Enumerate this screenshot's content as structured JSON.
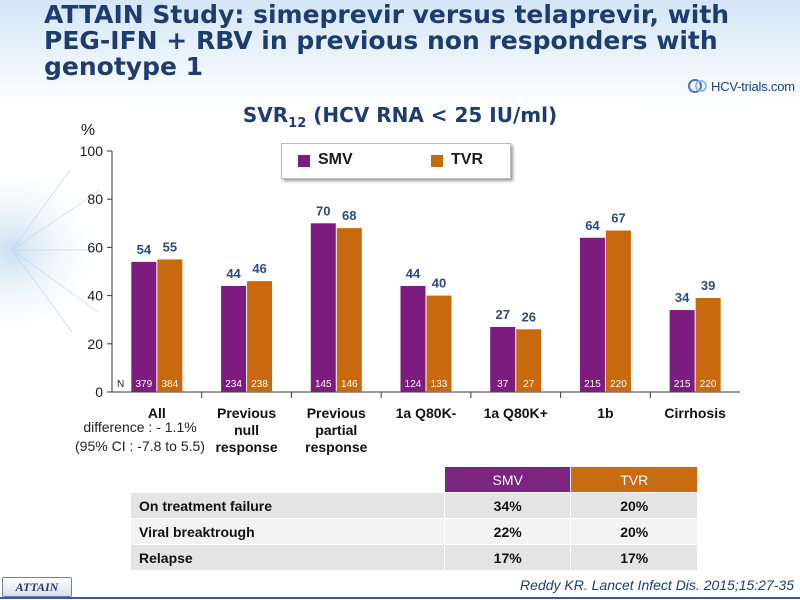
{
  "slide": {
    "title": "ATTAIN Study: simeprevir versus telaprevir, with PEG-IFN + RBV in previous non responders with genotype 1",
    "logo_text": "HCV-trials.com",
    "subtitle_main": "SVR",
    "subtitle_sub": "12",
    "subtitle_rest": " (HCV RNA < 25 IU/ml)",
    "difference_line1": "difference : - 1.1%",
    "difference_line2": "(95% CI : -7.8 to 5.5)",
    "badge": "ATTAIN",
    "citation": "Reddy KR. Lancet Infect Dis. 2015;15:27-35"
  },
  "colors": {
    "smv": "#7b1c7e",
    "tvr": "#c8690e",
    "label": "#2e4b80"
  },
  "chart_data": {
    "type": "bar",
    "ylabel": "%",
    "ylim": [
      0,
      100
    ],
    "yticks": [
      0,
      20,
      40,
      60,
      80,
      100
    ],
    "grid": false,
    "legend": "top",
    "n_label": "N",
    "categories": [
      [
        "All"
      ],
      [
        "Previous",
        "null",
        "response"
      ],
      [
        "Previous",
        "partial",
        "response"
      ],
      [
        "1a Q80K-"
      ],
      [
        "1a Q80K+"
      ],
      [
        "1b"
      ],
      [
        "Cirrhosis"
      ]
    ],
    "series": [
      {
        "name": "SMV",
        "values": [
          54,
          44,
          70,
          44,
          27,
          64,
          34
        ],
        "n": [
          379,
          234,
          145,
          124,
          37,
          215,
          215
        ]
      },
      {
        "name": "TVR",
        "values": [
          55,
          46,
          68,
          40,
          26,
          67,
          39
        ],
        "n": [
          384,
          238,
          146,
          133,
          27,
          220,
          220
        ]
      }
    ]
  },
  "table": {
    "headers": [
      "",
      "SMV",
      "TVR"
    ],
    "rows": [
      [
        "On treatment failure",
        "34%",
        "20%"
      ],
      [
        "Viral breaktrough",
        "22%",
        "20%"
      ],
      [
        "Relapse",
        "17%",
        "17%"
      ]
    ]
  }
}
